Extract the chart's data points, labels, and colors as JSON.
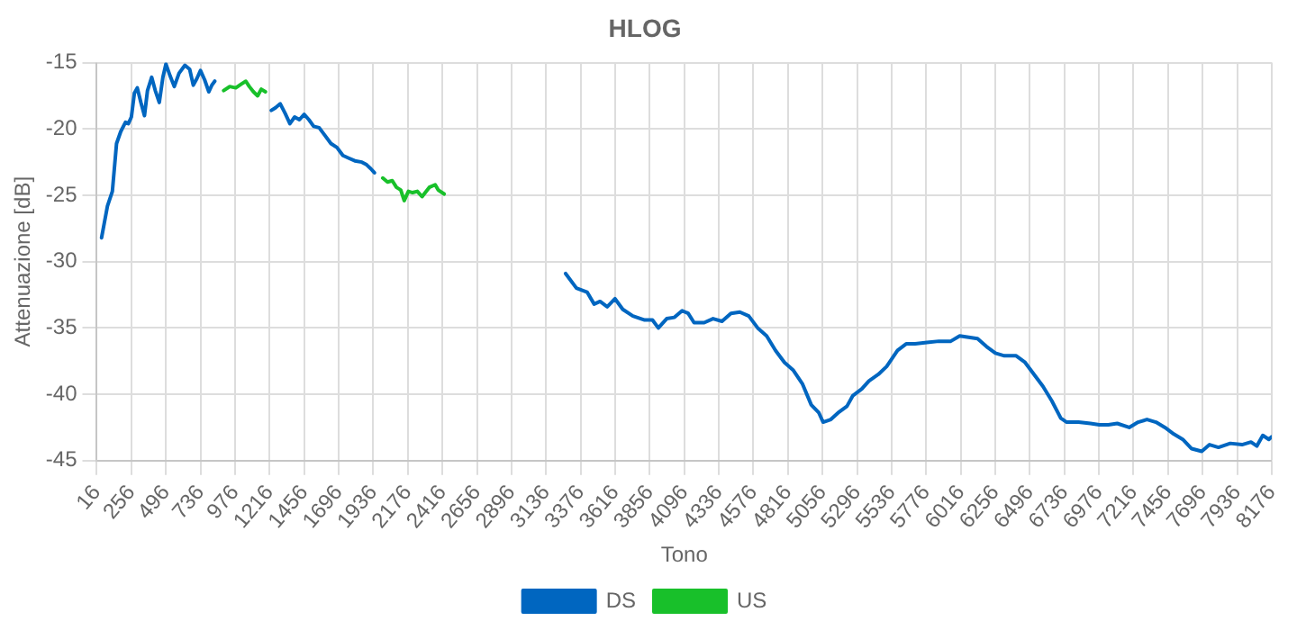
{
  "chart_data": {
    "type": "line",
    "title": "HLOG",
    "xlabel": "Tono",
    "ylabel": "Attenuazione [dB]",
    "xlim": [
      16,
      8176
    ],
    "xticks": [
      16,
      256,
      496,
      736,
      976,
      1216,
      1456,
      1696,
      1936,
      2176,
      2416,
      2656,
      2896,
      3136,
      3376,
      3616,
      3856,
      4096,
      4336,
      4576,
      4816,
      5056,
      5296,
      5536,
      5776,
      6016,
      6256,
      6496,
      6736,
      6976,
      7216,
      7456,
      7696,
      7936,
      8176
    ],
    "ylim": [
      -45,
      -15
    ],
    "yticks": [
      -45,
      -40,
      -35,
      -30,
      -25,
      -20,
      -15
    ],
    "grid": true,
    "legend": "bottom",
    "marker": "none",
    "line_style": "solid",
    "series": [
      {
        "name": "DS",
        "color": "#0066c0",
        "x": [
          49,
          90,
          124,
          153,
          182,
          215,
          235,
          256,
          277,
          297,
          322,
          347,
          368,
          397,
          422,
          450,
          475,
          496,
          525,
          554,
          587,
          628,
          661,
          686,
          711,
          736,
          765,
          794,
          815,
          835,
          1030,
          1228,
          1257,
          1290,
          1323,
          1357,
          1390,
          1423,
          1456,
          1489,
          1522,
          1560,
          1601,
          1642,
          1684,
          1725,
          1766,
          1808,
          1857,
          1890,
          1919,
          1944,
          2600,
          3272,
          3347,
          3421,
          3470,
          3511,
          3561,
          3615,
          3669,
          3739,
          3821,
          3875,
          3916,
          3974,
          4028,
          4081,
          4123,
          4164,
          4234,
          4296,
          4358,
          4420,
          4482,
          4544,
          4606,
          4668,
          4730,
          4792,
          4854,
          4916,
          4978,
          5031,
          5060,
          5114,
          5164,
          5226,
          5267,
          5329,
          5378,
          5444,
          5502,
          5577,
          5637,
          5699,
          5781,
          5864,
          5947,
          6009,
          6071,
          6133,
          6195,
          6257,
          6319,
          6401,
          6463,
          6525,
          6587,
          6649,
          6711,
          6752,
          6834,
          6917,
          6979,
          7041,
          7103,
          7186,
          7248,
          7310,
          7372,
          7434,
          7496,
          7558,
          7620,
          7690,
          7744,
          7806,
          7888,
          7970,
          8032,
          8073,
          8114,
          8156,
          8176
        ],
        "values": [
          -28.2,
          -25.8,
          -24.7,
          -21.1,
          -20.2,
          -19.5,
          -19.6,
          -19.1,
          -17.3,
          -16.9,
          -18.0,
          -19.0,
          -17.1,
          -16.1,
          -17.1,
          -18.0,
          -16.1,
          -15.1,
          -16.0,
          -16.8,
          -15.8,
          -15.2,
          -15.5,
          -16.7,
          -16.2,
          -15.6,
          -16.3,
          -17.2,
          -16.7,
          -16.4,
          null,
          -18.6,
          -18.4,
          -18.1,
          -18.8,
          -19.6,
          -19.1,
          -19.3,
          -18.9,
          -19.3,
          -19.8,
          -19.9,
          -20.5,
          -21.1,
          -21.4,
          -22.0,
          -22.2,
          -22.4,
          -22.5,
          -22.7,
          -23.0,
          -23.3,
          null,
          -30.9,
          -32.0,
          -32.3,
          -33.2,
          -33.0,
          -33.4,
          -32.8,
          -33.6,
          -34.1,
          -34.4,
          -34.4,
          -35.0,
          -34.3,
          -34.2,
          -33.7,
          -33.9,
          -34.6,
          -34.6,
          -34.3,
          -34.5,
          -33.9,
          -33.8,
          -34.1,
          -35.0,
          -35.6,
          -36.7,
          -37.6,
          -38.2,
          -39.2,
          -40.8,
          -41.4,
          -42.1,
          -41.9,
          -41.4,
          -40.9,
          -40.1,
          -39.6,
          -39.0,
          -38.5,
          -37.9,
          -36.7,
          -36.2,
          -36.2,
          -36.1,
          -36.0,
          -36.0,
          -35.6,
          -35.7,
          -35.8,
          -36.4,
          -36.9,
          -37.1,
          -37.1,
          -37.6,
          -38.5,
          -39.4,
          -40.5,
          -41.8,
          -42.1,
          -42.1,
          -42.2,
          -42.3,
          -42.3,
          -42.2,
          -42.5,
          -42.1,
          -41.9,
          -42.1,
          -42.5,
          -43.0,
          -43.4,
          -44.1,
          -44.3,
          -43.8,
          -44.0,
          -43.7,
          -43.8,
          -43.6,
          -43.9,
          -43.1,
          -43.4,
          -43.2
        ]
      },
      {
        "name": "US",
        "color": "#18c02a",
        "x": [
          897,
          939,
          981,
          1022,
          1051,
          1075,
          1104,
          1133,
          1158,
          1187,
          1600,
          2002,
          2035,
          2068,
          2097,
          2127,
          2151,
          2180,
          2209,
          2242,
          2275,
          2325,
          2366,
          2387,
          2428
        ],
        "values": [
          -17.1,
          -16.8,
          -16.9,
          -16.6,
          -16.4,
          -16.8,
          -17.2,
          -17.5,
          -17.0,
          -17.2,
          null,
          -23.7,
          -24.0,
          -23.9,
          -24.4,
          -24.6,
          -25.4,
          -24.7,
          -24.8,
          -24.7,
          -25.1,
          -24.4,
          -24.2,
          -24.6,
          -24.9
        ]
      }
    ]
  }
}
